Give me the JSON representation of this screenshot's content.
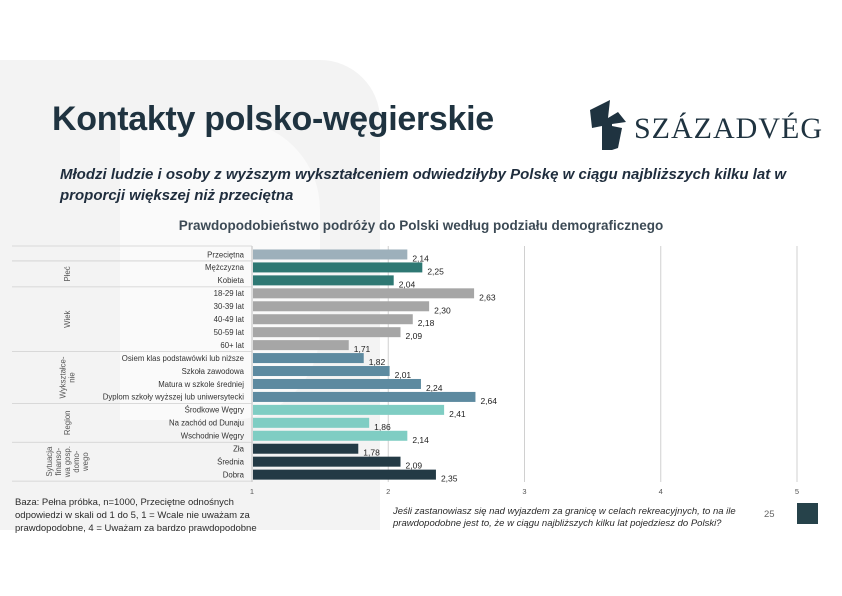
{
  "title": "Kontakty polsko-węgierskie",
  "logo": {
    "text": "SZÁZADVÉG",
    "icon": "helmet-logo-icon",
    "color": "#1f3340"
  },
  "subtitle": "Młodzi ludzie i osoby z wyższym wykształceniem odwiedziłyby Polskę w ciągu najbliższych kilku lat w proporcji większej niż przeciętna",
  "footnote": "Baza: Pełna próbka, n=1000, Przeciętne odnośnych odpowiedzi w skali od 1 do 5, 1 = Wcale nie uważam za prawdopodobne, 4 = Uważam za bardzo prawdopodobne",
  "question": "Jeśli zastanowiasz się nad wyjazdem za granicę w celach rekreacyjnych, to na ile prawdopodobne jest to, że w ciągu najbliższych kilku lat pojedziesz do Polski?",
  "page_number": "25",
  "chart_data": {
    "type": "bar",
    "orientation": "horizontal",
    "title": "Prawdopodobieństwo podróży do Polski według podziału demograficznego",
    "xlim": [
      1,
      5
    ],
    "xticks": [
      "1",
      "2",
      "3",
      "4",
      "5"
    ],
    "grid": "vertical",
    "groups": [
      {
        "name": "",
        "color": "#9db0bb",
        "items": [
          {
            "label": "Przeciętna",
            "value": 2.14,
            "display": "2,14"
          }
        ]
      },
      {
        "name": "Płeć",
        "color": "#2e7873",
        "items": [
          {
            "label": "Mężczyzna",
            "value": 2.25,
            "display": "2,25"
          },
          {
            "label": "Kobieta",
            "value": 2.04,
            "display": "2,04"
          }
        ]
      },
      {
        "name": "Wiek",
        "color": "#a6a6a6",
        "items": [
          {
            "label": "18-29 lat",
            "value": 2.63,
            "display": "2,63"
          },
          {
            "label": "30-39 lat",
            "value": 2.3,
            "display": "2,30"
          },
          {
            "label": "40-49 lat",
            "value": 2.18,
            "display": "2,18"
          },
          {
            "label": "50-59 lat",
            "value": 2.09,
            "display": "2,09"
          },
          {
            "label": "60+ lat",
            "value": 1.71,
            "display": "1,71"
          }
        ]
      },
      {
        "name": "Wykształce-\nnie",
        "color": "#5d8aa0",
        "items": [
          {
            "label": "Osiem klas podstawówki lub niższe",
            "value": 1.82,
            "display": "1,82"
          },
          {
            "label": "Szkoła zawodowa",
            "value": 2.01,
            "display": "2,01"
          },
          {
            "label": "Matura w szkole średniej",
            "value": 2.24,
            "display": "2,24"
          },
          {
            "label": "Dyplom szkoły wyższej lub uniwersytecki",
            "value": 2.64,
            "display": "2,64"
          }
        ]
      },
      {
        "name": "Region",
        "color": "#7fcdc3",
        "items": [
          {
            "label": "Środkowe Węgry",
            "value": 2.41,
            "display": "2,41"
          },
          {
            "label": "Na zachód od Dunaju",
            "value": 1.86,
            "display": "1,86"
          },
          {
            "label": "Wschodnie Węgry",
            "value": 2.14,
            "display": "2,14"
          }
        ]
      },
      {
        "name": "Sytuacja\nfinanso-\nwa gosp.\ndomo-\nwego",
        "color": "#233a45",
        "items": [
          {
            "label": "Zła",
            "value": 1.78,
            "display": "1,78"
          },
          {
            "label": "Średnia",
            "value": 2.09,
            "display": "2,09"
          },
          {
            "label": "Dobra",
            "value": 2.35,
            "display": "2,35"
          }
        ]
      }
    ]
  }
}
